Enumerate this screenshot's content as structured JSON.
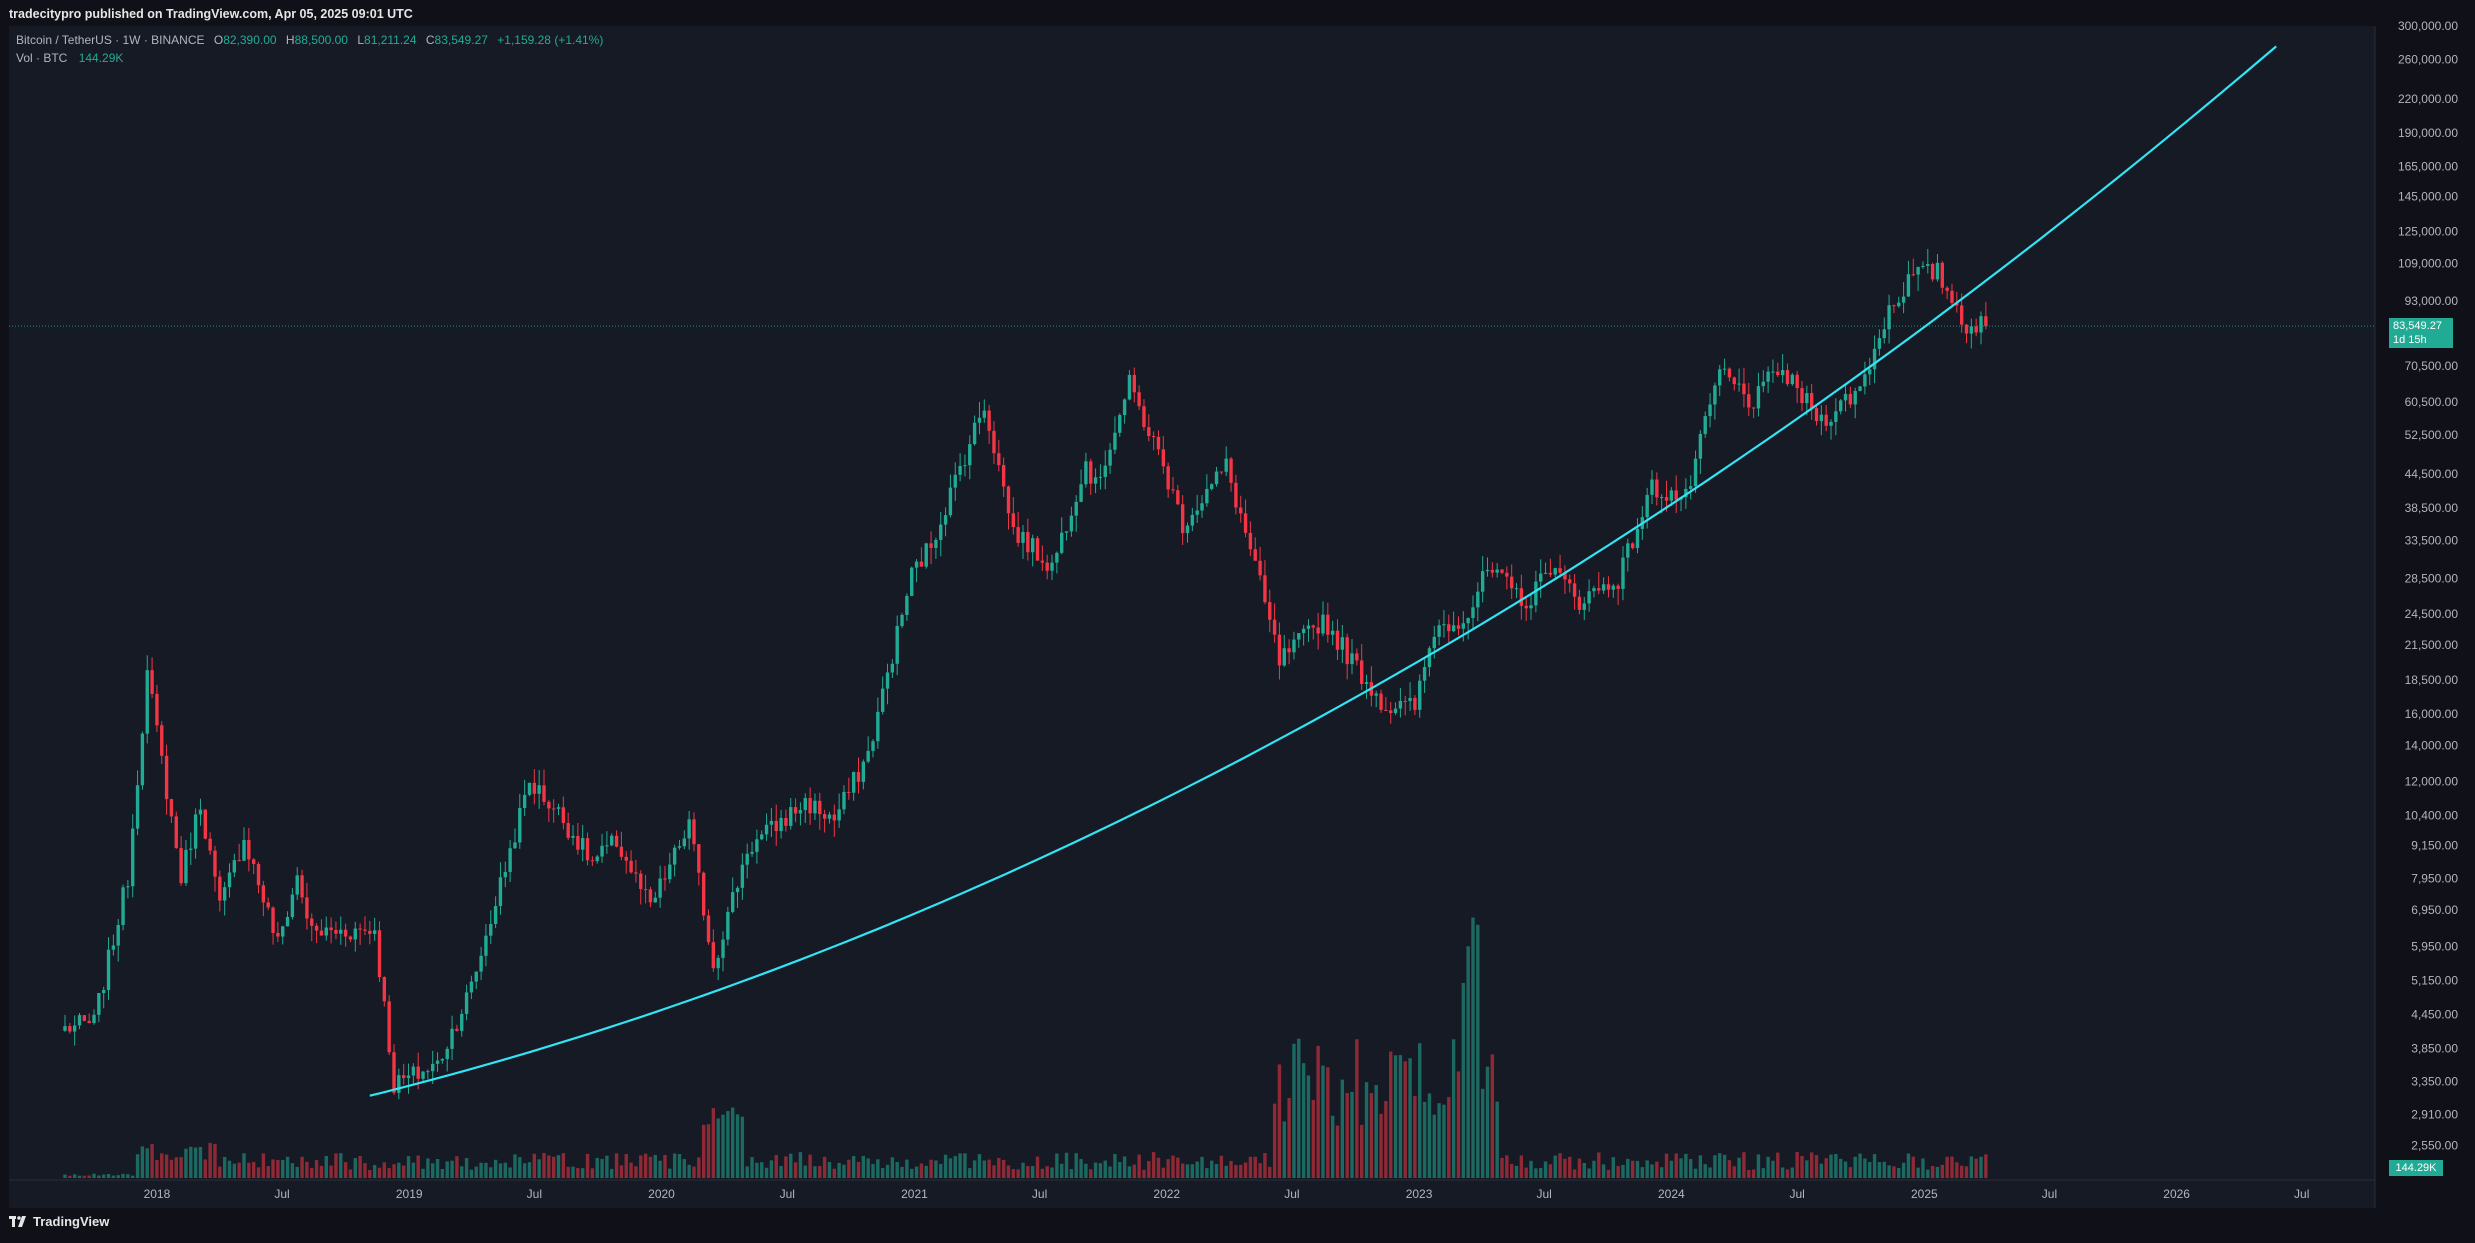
{
  "header": {
    "published_line": "tradecitypro published on TradingView.com, Apr 05, 2025 09:01 UTC"
  },
  "legend": {
    "symbol": "Bitcoin / TetherUS · 1W · BINANCE",
    "open_label": "O",
    "open": "82,390.00",
    "high_label": "H",
    "high": "88,500.00",
    "low_label": "L",
    "low": "81,211.24",
    "close_label": "C",
    "close": "83,549.27",
    "change": "+1,159.28 (+1.41%)",
    "vol_label": "Vol · BTC",
    "vol_value": "144.29K"
  },
  "price_badge": {
    "price": "83,549.27",
    "countdown": "1d 15h"
  },
  "volume_badge": "144.29K",
  "footer": {
    "brand": "TradingView"
  },
  "colors": {
    "background": "#161a25",
    "up": "#22ab94",
    "down": "#f23645",
    "curve": "#33e4f4",
    "text": "#b2b5be"
  },
  "chart_data": {
    "type": "candlestick",
    "scale": "log",
    "ylim": [
      2200,
      300000
    ],
    "xlim": [
      "2017-06-01",
      "2026-10-15"
    ],
    "y_tick_labels": [
      "300,000.00",
      "260,000.00",
      "220,000.00",
      "190,000.00",
      "165,000.00",
      "145,000.00",
      "125,000.00",
      "109,000.00",
      "93,000.00",
      "70,500.00",
      "60,500.00",
      "52,500.00",
      "44,500.00",
      "38,500.00",
      "33,500.00",
      "28,500.00",
      "24,500.00",
      "21,500.00",
      "18,500.00",
      "16,000.00",
      "14,000.00",
      "12,000.00",
      "10,400.00",
      "9,150.00",
      "7,950.00",
      "6,950.00",
      "5,950.00",
      "5,150.00",
      "4,450.00",
      "3,850.00",
      "3,350.00",
      "2,910.00",
      "2,550.00"
    ],
    "x_tick_labels": [
      {
        "label": "2018",
        "date": "2018-01-01"
      },
      {
        "label": "Jul",
        "date": "2018-07-01"
      },
      {
        "label": "2019",
        "date": "2019-01-01"
      },
      {
        "label": "Jul",
        "date": "2019-07-01"
      },
      {
        "label": "2020",
        "date": "2020-01-01"
      },
      {
        "label": "Jul",
        "date": "2020-07-01"
      },
      {
        "label": "2021",
        "date": "2021-01-01"
      },
      {
        "label": "Jul",
        "date": "2021-07-01"
      },
      {
        "label": "2022",
        "date": "2022-01-01"
      },
      {
        "label": "Jul",
        "date": "2022-07-01"
      },
      {
        "label": "2023",
        "date": "2023-01-01"
      },
      {
        "label": "Jul",
        "date": "2023-07-01"
      },
      {
        "label": "2024",
        "date": "2024-01-01"
      },
      {
        "label": "Jul",
        "date": "2024-07-01"
      },
      {
        "label": "2025",
        "date": "2025-01-01"
      },
      {
        "label": "Jul",
        "date": "2025-07-01"
      },
      {
        "label": "2026",
        "date": "2026-01-01"
      },
      {
        "label": "Jul",
        "date": "2026-07-01"
      }
    ],
    "last_price": 83549.27,
    "price_anchors": [
      [
        "2017-08-21",
        4200
      ],
      [
        "2017-10-02",
        4300
      ],
      [
        "2017-11-20",
        8000
      ],
      [
        "2017-12-18",
        19000
      ],
      [
        "2018-02-05",
        8000
      ],
      [
        "2018-03-05",
        11000
      ],
      [
        "2018-04-02",
        7000
      ],
      [
        "2018-05-07",
        9500
      ],
      [
        "2018-06-25",
        6000
      ],
      [
        "2018-07-23",
        8000
      ],
      [
        "2018-08-13",
        6300
      ],
      [
        "2018-11-12",
        6400
      ],
      [
        "2018-12-10",
        3300
      ],
      [
        "2019-02-11",
        3600
      ],
      [
        "2019-04-01",
        5000
      ],
      [
        "2019-06-24",
        12000
      ],
      [
        "2019-08-05",
        10500
      ],
      [
        "2019-09-23",
        8500
      ],
      [
        "2019-10-28",
        9300
      ],
      [
        "2019-12-16",
        7000
      ],
      [
        "2020-02-10",
        10000
      ],
      [
        "2020-03-16",
        5500
      ],
      [
        "2020-05-04",
        9000
      ],
      [
        "2020-07-27",
        11000
      ],
      [
        "2020-09-07",
        10200
      ],
      [
        "2020-10-26",
        13500
      ],
      [
        "2020-12-28",
        29000
      ],
      [
        "2021-01-25",
        33000
      ],
      [
        "2021-04-12",
        60000
      ],
      [
        "2021-05-24",
        35000
      ],
      [
        "2021-07-19",
        30000
      ],
      [
        "2021-09-06",
        47000
      ],
      [
        "2021-09-20",
        42000
      ],
      [
        "2021-11-08",
        65000
      ],
      [
        "2021-12-27",
        46000
      ],
      [
        "2022-01-24",
        36000
      ],
      [
        "2022-03-28",
        46000
      ],
      [
        "2022-05-09",
        30000
      ],
      [
        "2022-06-13",
        20000
      ],
      [
        "2022-08-15",
        24000
      ],
      [
        "2022-10-03",
        19500
      ],
      [
        "2022-11-14",
        16500
      ],
      [
        "2022-12-26",
        16500
      ],
      [
        "2023-01-23",
        23000
      ],
      [
        "2023-03-13",
        24500
      ],
      [
        "2023-04-10",
        29500
      ],
      [
        "2023-06-12",
        25500
      ],
      [
        "2023-07-03",
        30500
      ],
      [
        "2023-08-21",
        26000
      ],
      [
        "2023-10-16",
        28500
      ],
      [
        "2023-12-04",
        42000
      ],
      [
        "2024-01-22",
        40000
      ],
      [
        "2024-03-11",
        69000
      ],
      [
        "2024-04-29",
        60000
      ],
      [
        "2024-06-03",
        70000
      ],
      [
        "2024-08-05",
        56000
      ],
      [
        "2024-09-30",
        64000
      ],
      [
        "2024-11-11",
        90000
      ],
      [
        "2024-12-16",
        104000
      ],
      [
        "2025-01-20",
        105000
      ],
      [
        "2025-03-03",
        84000
      ],
      [
        "2025-03-31",
        83549
      ]
    ],
    "trend_curve": {
      "start": [
        "2018-11-05",
        3150
      ],
      "end": [
        "2026-05-25",
        275000
      ]
    },
    "volume": {
      "series": "Vol · BTC",
      "last": "144.29K"
    }
  }
}
